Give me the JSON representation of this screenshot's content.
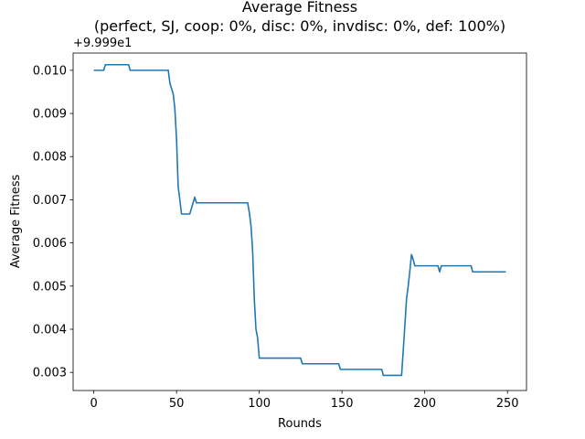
{
  "chart_data": {
    "type": "line",
    "title": "Average Fitness",
    "subtitle": "(perfect, SJ, coop: 0%, disc: 0%, invdisc: 0%, def: 100%)",
    "xlabel": "Rounds",
    "ylabel": "Average Fitness",
    "offset_label": "+9.999e1",
    "xlim": [
      -12.5,
      261.5
    ],
    "ylim": [
      0.00258,
      0.0104
    ],
    "xticks": [
      0,
      50,
      100,
      150,
      200,
      250
    ],
    "xtick_labels": [
      "0",
      "50",
      "100",
      "150",
      "200",
      "250"
    ],
    "yticks": [
      0.003,
      0.004,
      0.005,
      0.006,
      0.007,
      0.008,
      0.009,
      0.01
    ],
    "ytick_labels": [
      "0.003",
      "0.004",
      "0.005",
      "0.006",
      "0.007",
      "0.008",
      "0.009",
      "0.010"
    ],
    "grid": false,
    "line_color": "#1f77b4",
    "series": [
      {
        "x": [
          0,
          6,
          7,
          21,
          22,
          45,
          46,
          48,
          49,
          50,
          51,
          52,
          53,
          55,
          58,
          60,
          61,
          62,
          93,
          94,
          95,
          96,
          97,
          98,
          99,
          100,
          125,
          126,
          148,
          149,
          174,
          175,
          186,
          187,
          188,
          189,
          190,
          191,
          192,
          193,
          194,
          208,
          209,
          210,
          228,
          229,
          249
        ],
        "y": [
          0.01,
          0.01,
          0.01013,
          0.01013,
          0.01,
          0.01,
          0.0097,
          0.00945,
          0.0091,
          0.0084,
          0.0073,
          0.007,
          0.00667,
          0.00667,
          0.00667,
          0.00693,
          0.00706,
          0.00693,
          0.00693,
          0.0067,
          0.0064,
          0.0058,
          0.0047,
          0.004,
          0.0038,
          0.00333,
          0.00333,
          0.0032,
          0.0032,
          0.00307,
          0.00307,
          0.00293,
          0.00293,
          0.0035,
          0.0041,
          0.0047,
          0.005,
          0.00535,
          0.00573,
          0.00562,
          0.00547,
          0.00547,
          0.00533,
          0.00547,
          0.00547,
          0.00533,
          0.00533
        ]
      }
    ]
  }
}
